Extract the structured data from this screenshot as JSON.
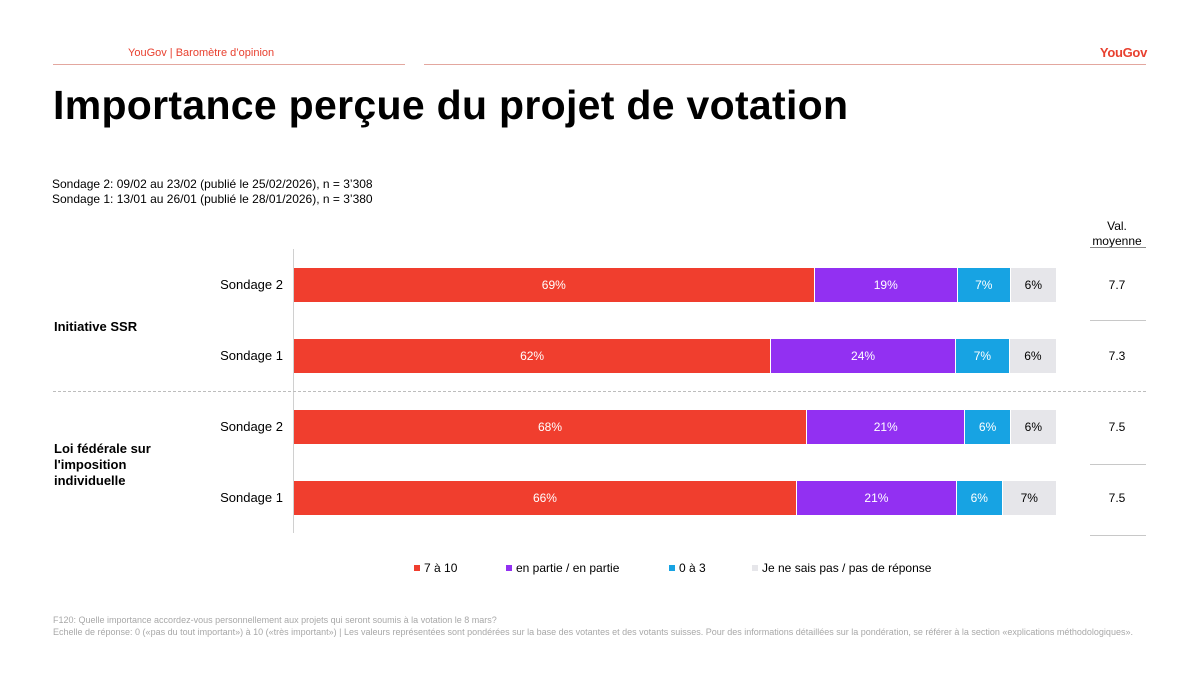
{
  "header": {
    "source_label": "YouGov | Baromètre d’opinion",
    "brand": "YouGov"
  },
  "title": "Importance perçue du projet de votation",
  "samples": [
    "Sondage 2: 09/02 au 23/02 (publié le 25/02/2026), n = 3’308",
    "Sondage 1: 13/01 au 26/01 (publié le 28/01/2026), n = 3’380"
  ],
  "avg_header": [
    "Val.",
    "moyenne"
  ],
  "colors": {
    "accent": "#f03e2e",
    "7_a_10": "#f03e2e",
    "en_partie": "#9230f2",
    "0_a_3": "#17a3e3",
    "ne_sais_pas": "#e6e6ea"
  },
  "chart_data": {
    "type": "bar",
    "orientation": "horizontal",
    "stacked": true,
    "groups": [
      {
        "label": "Initiative SSR",
        "rows": [
          {
            "label": "Sondage 2",
            "values": [
              69,
              19,
              7,
              6
            ],
            "labels": [
              "69%",
              "19%",
              "7%",
              "6%"
            ],
            "mean": "7.7"
          },
          {
            "label": "Sondage 1",
            "values": [
              62,
              24,
              7,
              6
            ],
            "labels": [
              "62%",
              "24%",
              "7%",
              "6%"
            ],
            "mean": "7.3"
          }
        ]
      },
      {
        "label": "Loi fédérale sur l'imposition individuelle",
        "rows": [
          {
            "label": "Sondage 2",
            "values": [
              68,
              21,
              6,
              6
            ],
            "labels": [
              "68%",
              "21%",
              "6%",
              "6%"
            ],
            "mean": "7.5"
          },
          {
            "label": "Sondage 1",
            "values": [
              66,
              21,
              6,
              7
            ],
            "labels": [
              "66%",
              "21%",
              "6%",
              "7%"
            ],
            "mean": "7.5"
          }
        ]
      }
    ],
    "series": [
      {
        "name": "7 à 10",
        "color": "#f03e2e"
      },
      {
        "name": "en partie / en partie",
        "color": "#9230f2"
      },
      {
        "name": "0 à 3",
        "color": "#17a3e3"
      },
      {
        "name": "Je ne sais pas / pas de réponse",
        "color": "#e6e6ea"
      }
    ],
    "xlim": [
      0,
      100
    ],
    "legend_position": "bottom"
  },
  "footnote": [
    "F120: Quelle importance accordez-vous personnellement aux projets qui seront soumis  à la votation le 8 mars?",
    "Echelle de réponse: 0 («pas du tout important») à 10 («très important») | Les valeurs représentées sont pondérées sur la base des votantes et des votants suisses. Pour des informations détaillées sur la pondération, se référer à la section «explications méthodologiques»."
  ]
}
